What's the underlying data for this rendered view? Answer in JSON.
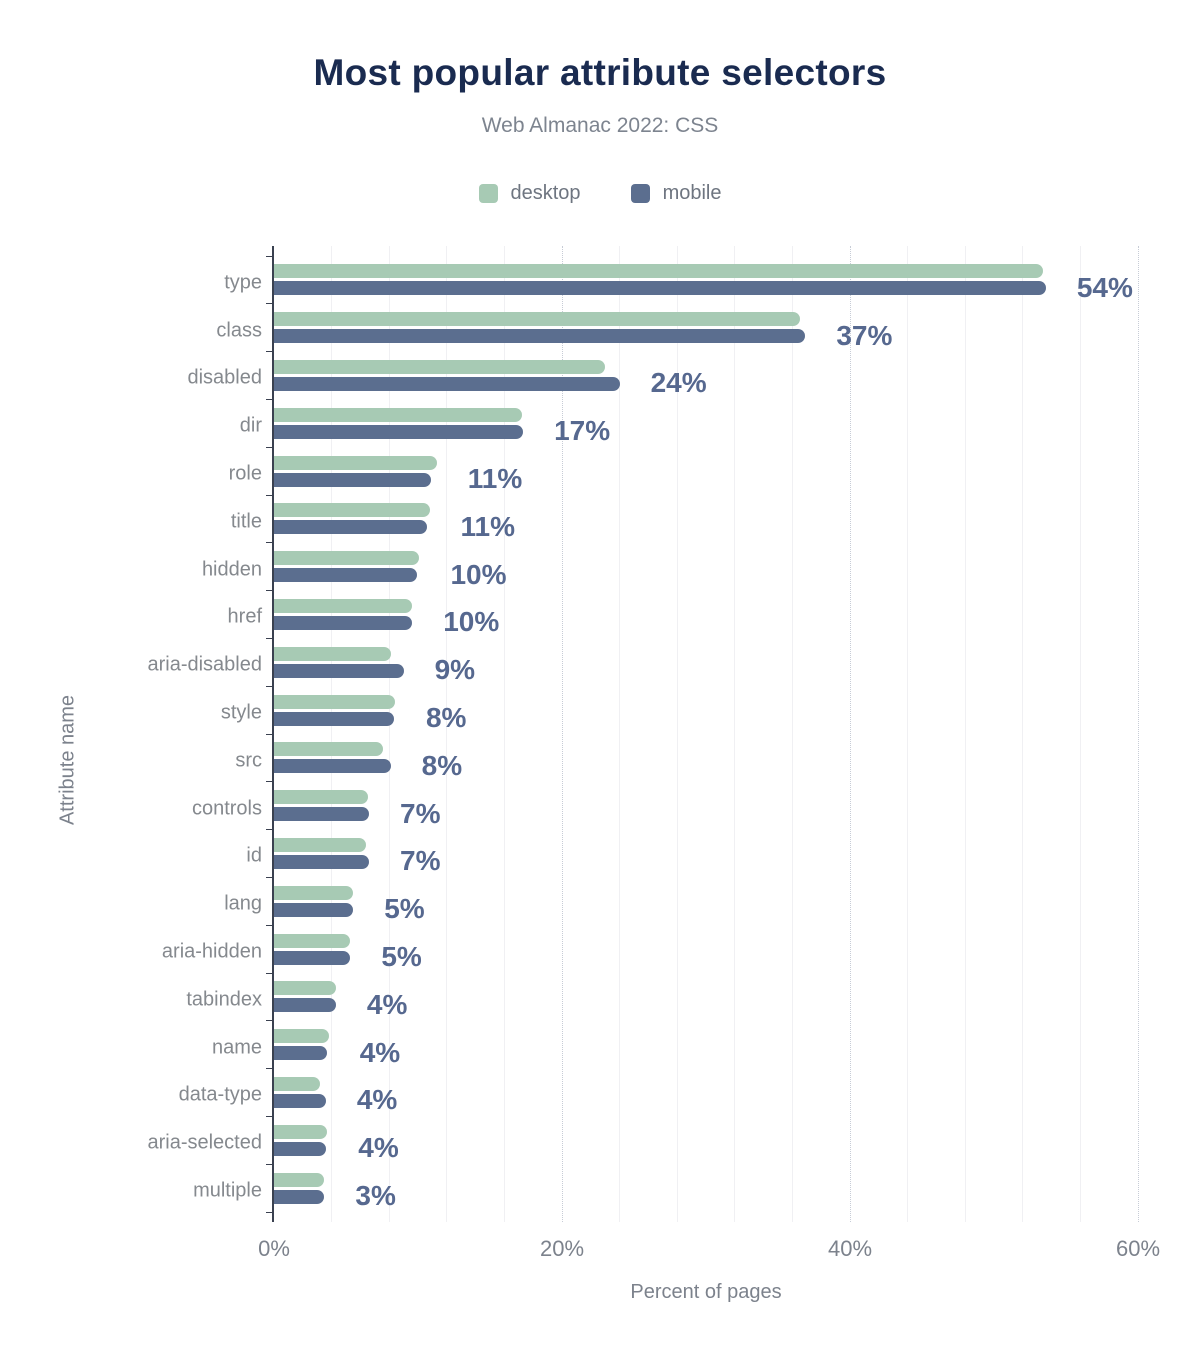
{
  "chart_data": {
    "type": "bar",
    "orientation": "horizontal",
    "title": "Most popular attribute selectors",
    "subtitle": "Web Almanac 2022: CSS",
    "xlabel": "Percent of pages",
    "ylabel": "Attribute name",
    "xlim": [
      0,
      60
    ],
    "xticks": [
      "0%",
      "20%",
      "40%",
      "60%"
    ],
    "xtick_values": [
      0,
      20,
      40,
      60
    ],
    "grid": {
      "minor_step": 4,
      "major_step": 20,
      "minor_on": true,
      "major_on": true
    },
    "legend_position": "top",
    "categories": [
      "type",
      "class",
      "disabled",
      "dir",
      "role",
      "title",
      "hidden",
      "href",
      "aria-disabled",
      "style",
      "src",
      "controls",
      "id",
      "lang",
      "aria-hidden",
      "tabindex",
      "name",
      "data-type",
      "aria-selected",
      "multiple"
    ],
    "series": [
      {
        "name": "desktop",
        "color": "#a7cab4",
        "values": [
          53.4,
          36.5,
          23.0,
          17.2,
          11.3,
          10.8,
          10.1,
          9.6,
          8.1,
          8.4,
          7.6,
          6.5,
          6.4,
          5.5,
          5.3,
          4.3,
          3.8,
          3.2,
          3.7,
          3.5
        ]
      },
      {
        "name": "mobile",
        "color": "#5b6e8f",
        "values": [
          53.6,
          36.9,
          24.0,
          17.3,
          10.9,
          10.6,
          9.9,
          9.6,
          9.0,
          8.3,
          8.1,
          6.6,
          6.6,
          5.5,
          5.3,
          4.3,
          3.7,
          3.6,
          3.6,
          3.5
        ]
      }
    ],
    "value_labels": [
      "54%",
      "37%",
      "24%",
      "17%",
      "11%",
      "11%",
      "10%",
      "10%",
      "9%",
      "8%",
      "8%",
      "7%",
      "7%",
      "5%",
      "5%",
      "4%",
      "4%",
      "4%",
      "4%",
      "3%"
    ]
  },
  "colors": {
    "title": "#1a2b50",
    "subtitle": "#7d848f",
    "axis_line": "#3a4150",
    "axis_text": "#7c828c",
    "category_text": "#85898e",
    "value_text": "#56688f",
    "grid_minor": "#f0f0f3",
    "grid_major": "#c7ccd6"
  }
}
